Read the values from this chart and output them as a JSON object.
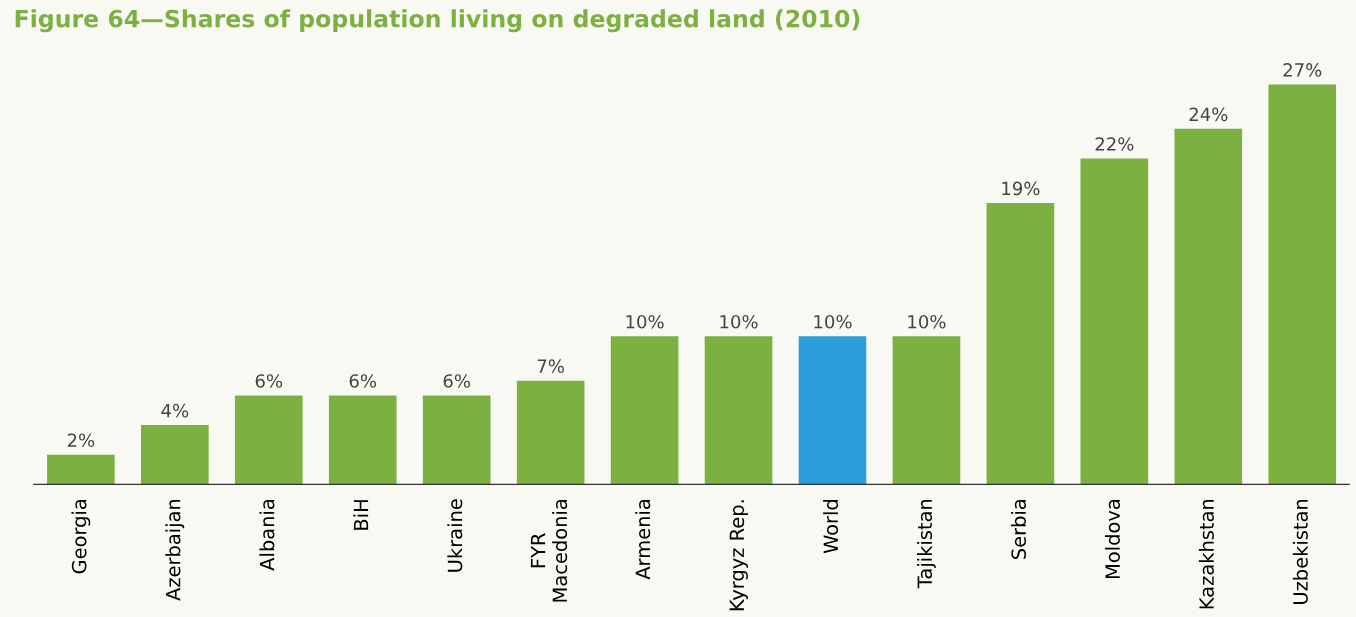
{
  "chart_data": {
    "type": "bar",
    "title": "Figure 64—Shares of population living on degraded land (2010)",
    "categories": [
      "Georgia",
      "Azerbaijan",
      "Albania",
      "BiH",
      "Ukraine",
      "FYR\nMacedonia",
      "Armenia",
      "Kyrgyz Rep.",
      "World",
      "Tajikistan",
      "Serbia",
      "Moldova",
      "Kazakhstan",
      "Uzbekistan"
    ],
    "values": [
      2,
      4,
      6,
      6,
      6,
      7,
      10,
      10,
      10,
      10,
      19,
      22,
      24,
      27
    ],
    "value_labels": [
      "2%",
      "4%",
      "6%",
      "6%",
      "6%",
      "7%",
      "10%",
      "10%",
      "10%",
      "10%",
      "19%",
      "22%",
      "24%",
      "27%"
    ],
    "colors": [
      "#7cb142",
      "#7cb142",
      "#7cb142",
      "#7cb142",
      "#7cb142",
      "#7cb142",
      "#7cb142",
      "#7cb142",
      "#2b9fdc",
      "#7cb142",
      "#7cb142",
      "#7cb142",
      "#7cb142",
      "#7cb142"
    ],
    "grid": false,
    "legend": false
  }
}
